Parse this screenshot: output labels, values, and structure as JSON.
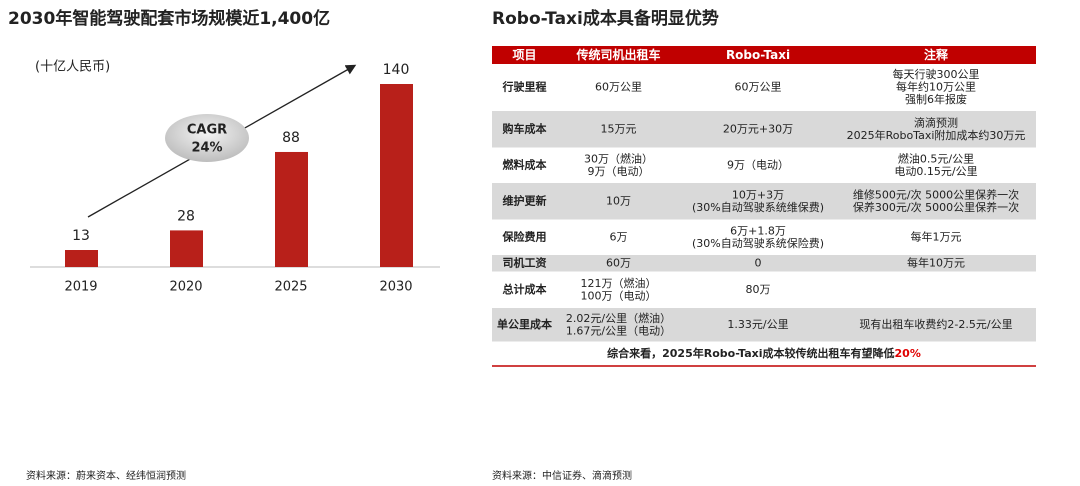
{
  "chart_data": {
    "type": "bar",
    "title": "2030年智能驾驶配套市场规模近1,400亿",
    "unit_label": "(十亿人民币)",
    "annotation": [
      "CAGR",
      "24%"
    ],
    "categories": [
      "2019",
      "2020",
      "2025",
      "2030"
    ],
    "values": [
      13,
      28,
      88,
      140
    ],
    "color": "#b8201a"
  },
  "left_source": "资料来源：蔚来资本、经纬恒润预测",
  "right_title": "Robo-Taxi成本具备明显优势",
  "table": {
    "header": [
      "项目",
      "传统司机出租车",
      "Robo-Taxi",
      "注释"
    ],
    "rows": [
      [
        [
          "行驶里程"
        ],
        [
          "60万公里"
        ],
        [
          "60万公里"
        ],
        [
          "每天行驶300公里",
          "每年约10万公里",
          "强制6年报废"
        ]
      ],
      [
        [
          "购车成本"
        ],
        [
          "15万元"
        ],
        [
          "20万元+30万"
        ],
        [
          "滴滴预测",
          "2025年RoboTaxi附加成本约30万元"
        ]
      ],
      [
        [
          "燃料成本"
        ],
        [
          "30万（燃油）",
          "9万（电动）"
        ],
        [
          "9万（电动）"
        ],
        [
          "燃油0.5元/公里",
          "电动0.15元/公里"
        ]
      ],
      [
        [
          "维护更新"
        ],
        [
          "10万"
        ],
        [
          "10万+3万",
          "(30%自动驾驶系统维保费)"
        ],
        [
          "维修500元/次 5000公里保养一次",
          "保养300元/次 5000公里保养一次"
        ]
      ],
      [
        [
          "保险费用"
        ],
        [
          "6万"
        ],
        [
          "6万+1.8万",
          "(30%自动驾驶系统保险费)"
        ],
        [
          "每年1万元"
        ]
      ],
      [
        [
          "司机工资"
        ],
        [
          "60万"
        ],
        [
          "0"
        ],
        [
          "每年10万元"
        ]
      ],
      [
        [
          "总计成本"
        ],
        [
          "121万（燃油）",
          "100万（电动）"
        ],
        [
          "80万"
        ],
        []
      ],
      [
        [
          "单公里成本"
        ],
        [
          "2.02元/公里（燃油）",
          "1.67元/公里（电动）"
        ],
        [
          "1.33元/公里"
        ],
        [
          "现有出租车收费约2-2.5元/公里"
        ]
      ]
    ],
    "footer": {
      "text": "综合来看，2025年Robo-Taxi成本较传统出租车有望降低",
      "highlight": "20%"
    }
  },
  "right_source": "资料来源：中信证券、滴滴预测"
}
